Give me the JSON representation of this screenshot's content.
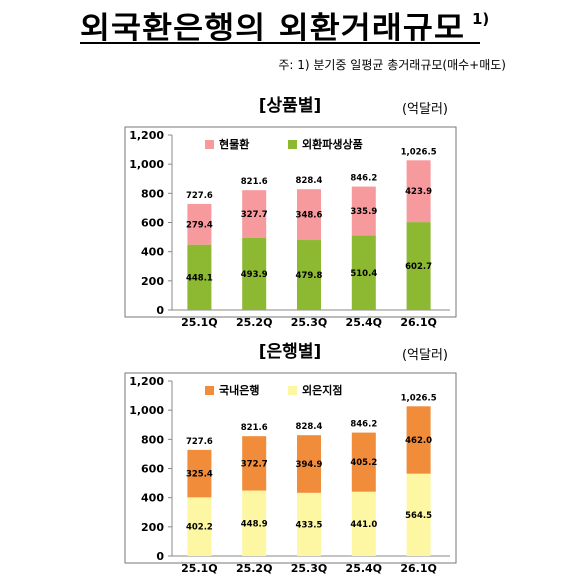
{
  "title": "외국환은행의 외환거래규모",
  "title_sup": "1)",
  "note": "주: 1) 분기중 일평균 총거래규모(매수+매도)",
  "chart_data": [
    {
      "type": "bar",
      "stacked": true,
      "header": "[상품별]",
      "unit": "(억달러)",
      "categories": [
        "25.1Q",
        "25.2Q",
        "25.3Q",
        "25.4Q",
        "26.1Q"
      ],
      "ylim": [
        0,
        1200
      ],
      "yticks": [
        "0",
        "200",
        "400",
        "600",
        "800",
        "1,000",
        "1,200"
      ],
      "totals": [
        "727.6",
        "821.6",
        "828.4",
        "846.2",
        "1,026.5"
      ],
      "legend_position": "top",
      "series": [
        {
          "name": "외환파생상품",
          "values": [
            448.1,
            493.9,
            479.8,
            510.4,
            602.7
          ],
          "labels": [
            "448.1",
            "493.9",
            "479.8",
            "510.4",
            "602.7"
          ],
          "color": "#8cb832"
        },
        {
          "name": "현물환",
          "values": [
            279.4,
            327.7,
            348.6,
            335.9,
            423.9
          ],
          "labels": [
            "279.4",
            "327.7",
            "348.6",
            "335.9",
            "423.9"
          ],
          "color": "#f79a9e"
        }
      ],
      "legend_order": [
        1,
        0
      ]
    },
    {
      "type": "bar",
      "stacked": true,
      "header": "[은행별]",
      "unit": "(억달러)",
      "categories": [
        "25.1Q",
        "25.2Q",
        "25.3Q",
        "25.4Q",
        "26.1Q"
      ],
      "ylim": [
        0,
        1200
      ],
      "yticks": [
        "0",
        "200",
        "400",
        "600",
        "800",
        "1,000",
        "1,200"
      ],
      "totals": [
        "727.6",
        "821.6",
        "828.4",
        "846.2",
        "1,026.5"
      ],
      "legend_position": "top",
      "series": [
        {
          "name": "외은지점",
          "values": [
            402.2,
            448.9,
            433.5,
            441.0,
            564.5
          ],
          "labels": [
            "402.2",
            "448.9",
            "433.5",
            "441.0",
            "564.5"
          ],
          "color": "#fdf7a4"
        },
        {
          "name": "국내은행",
          "values": [
            325.4,
            372.7,
            394.9,
            405.2,
            462.0
          ],
          "labels": [
            "325.4",
            "372.7",
            "394.9",
            "405.2",
            "462.0"
          ],
          "color": "#f08c3a"
        }
      ],
      "legend_order": [
        1,
        0
      ]
    }
  ]
}
